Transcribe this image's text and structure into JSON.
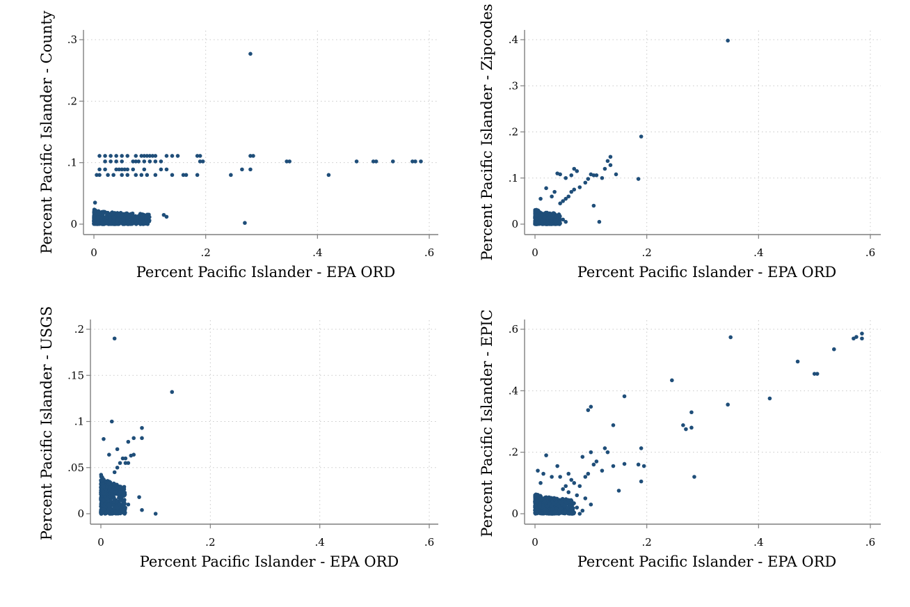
{
  "chart_data": [
    {
      "type": "scatter",
      "xlabel": "Percent Pacific Islander - EPA ORD",
      "ylabel": "Percent Pacific Islander - County",
      "xlim": [
        0,
        0.6
      ],
      "ylim": [
        0,
        0.3
      ],
      "x_ticks": [
        {
          "v": 0,
          "t": "0"
        },
        {
          "v": 0.2,
          "t": ".2"
        },
        {
          "v": 0.4,
          "t": ".4"
        },
        {
          "v": 0.6,
          "t": ".6"
        }
      ],
      "y_ticks": [
        {
          "v": 0,
          "t": "0"
        },
        {
          "v": 0.1,
          "t": ".1"
        },
        {
          "v": 0.2,
          "t": ".2"
        },
        {
          "v": 0.3,
          "t": ".3"
        }
      ],
      "grid": true,
      "color": "#1f4e79",
      "points": [
        [
          0.28,
          0.277
        ],
        [
          0.28,
          0.111
        ],
        [
          0.285,
          0.111
        ],
        [
          0.35,
          0.102
        ],
        [
          0.345,
          0.102
        ],
        [
          0.47,
          0.102
        ],
        [
          0.5,
          0.102
        ],
        [
          0.505,
          0.102
        ],
        [
          0.535,
          0.102
        ],
        [
          0.57,
          0.102
        ],
        [
          0.575,
          0.102
        ],
        [
          0.585,
          0.102
        ],
        [
          0.42,
          0.08
        ],
        [
          0.245,
          0.08
        ],
        [
          0.265,
          0.089
        ],
        [
          0.28,
          0.089
        ],
        [
          0.27,
          0.002
        ],
        [
          0.19,
          0.102
        ],
        [
          0.195,
          0.102
        ],
        [
          0.185,
          0.111
        ],
        [
          0.19,
          0.111
        ],
        [
          0.185,
          0.08
        ],
        [
          0.01,
          0.111
        ],
        [
          0.02,
          0.111
        ],
        [
          0.03,
          0.111
        ],
        [
          0.04,
          0.111
        ],
        [
          0.05,
          0.111
        ],
        [
          0.06,
          0.111
        ],
        [
          0.075,
          0.111
        ],
        [
          0.085,
          0.111
        ],
        [
          0.09,
          0.111
        ],
        [
          0.1,
          0.111
        ],
        [
          0.11,
          0.111
        ],
        [
          0.13,
          0.111
        ],
        [
          0.15,
          0.111
        ],
        [
          0.095,
          0.111
        ],
        [
          0.105,
          0.111
        ],
        [
          0.14,
          0.111
        ],
        [
          0.02,
          0.102
        ],
        [
          0.03,
          0.102
        ],
        [
          0.04,
          0.102
        ],
        [
          0.05,
          0.102
        ],
        [
          0.07,
          0.102
        ],
        [
          0.08,
          0.102
        ],
        [
          0.09,
          0.102
        ],
        [
          0.1,
          0.102
        ],
        [
          0.11,
          0.102
        ],
        [
          0.12,
          0.102
        ],
        [
          0.075,
          0.102
        ],
        [
          0.01,
          0.089
        ],
        [
          0.02,
          0.089
        ],
        [
          0.04,
          0.089
        ],
        [
          0.05,
          0.089
        ],
        [
          0.06,
          0.089
        ],
        [
          0.07,
          0.089
        ],
        [
          0.09,
          0.089
        ],
        [
          0.12,
          0.089
        ],
        [
          0.13,
          0.089
        ],
        [
          0.045,
          0.089
        ],
        [
          0.055,
          0.089
        ],
        [
          0.005,
          0.08
        ],
        [
          0.01,
          0.08
        ],
        [
          0.025,
          0.08
        ],
        [
          0.035,
          0.08
        ],
        [
          0.05,
          0.08
        ],
        [
          0.06,
          0.08
        ],
        [
          0.075,
          0.08
        ],
        [
          0.085,
          0.08
        ],
        [
          0.095,
          0.08
        ],
        [
          0.11,
          0.08
        ],
        [
          0.14,
          0.08
        ],
        [
          0.16,
          0.08
        ],
        [
          0.165,
          0.08
        ],
        [
          0.13,
          0.012
        ],
        [
          0.125,
          0.015
        ],
        [
          0.002,
          0.035
        ]
      ],
      "cluster": {
        "xmin": 0,
        "xmax": 0.1,
        "ymin": 0,
        "ymax": 0.025,
        "n": 500
      }
    },
    {
      "type": "scatter",
      "xlabel": "Percent Pacific Islander - EPA ORD",
      "ylabel": "Percent Pacific Islander - Zipcodes",
      "xlim": [
        0,
        0.6
      ],
      "ylim": [
        0,
        0.4
      ],
      "x_ticks": [
        {
          "v": 0,
          "t": "0"
        },
        {
          "v": 0.2,
          "t": ".2"
        },
        {
          "v": 0.4,
          "t": ".4"
        },
        {
          "v": 0.6,
          "t": ".6"
        }
      ],
      "y_ticks": [
        {
          "v": 0,
          "t": "0"
        },
        {
          "v": 0.1,
          "t": ".1"
        },
        {
          "v": 0.2,
          "t": ".2"
        },
        {
          "v": 0.3,
          "t": ".3"
        },
        {
          "v": 0.4,
          "t": ".4"
        }
      ],
      "grid": true,
      "color": "#1f4e79",
      "points": [
        [
          0.345,
          0.398
        ],
        [
          0.19,
          0.19
        ],
        [
          0.185,
          0.098
        ],
        [
          0.135,
          0.146
        ],
        [
          0.13,
          0.137
        ],
        [
          0.135,
          0.128
        ],
        [
          0.125,
          0.12
        ],
        [
          0.145,
          0.108
        ],
        [
          0.12,
          0.1
        ],
        [
          0.1,
          0.108
        ],
        [
          0.105,
          0.106
        ],
        [
          0.11,
          0.106
        ],
        [
          0.095,
          0.098
        ],
        [
          0.09,
          0.09
        ],
        [
          0.08,
          0.08
        ],
        [
          0.07,
          0.12
        ],
        [
          0.075,
          0.115
        ],
        [
          0.065,
          0.106
        ],
        [
          0.055,
          0.1
        ],
        [
          0.045,
          0.108
        ],
        [
          0.04,
          0.11
        ],
        [
          0.07,
          0.075
        ],
        [
          0.065,
          0.07
        ],
        [
          0.06,
          0.06
        ],
        [
          0.055,
          0.055
        ],
        [
          0.05,
          0.05
        ],
        [
          0.045,
          0.045
        ],
        [
          0.105,
          0.04
        ],
        [
          0.115,
          0.005
        ],
        [
          0.02,
          0.078
        ],
        [
          0.035,
          0.07
        ],
        [
          0.03,
          0.06
        ],
        [
          0.01,
          0.055
        ],
        [
          0.055,
          0.005
        ],
        [
          0.05,
          0.01
        ]
      ],
      "cluster": {
        "xmin": 0,
        "xmax": 0.045,
        "ymin": 0,
        "ymax": 0.035,
        "n": 300
      }
    },
    {
      "type": "scatter",
      "xlabel": "Percent Pacific Islander - EPA ORD",
      "ylabel": "Percent Pacific Islander - USGS",
      "xlim": [
        0,
        0.6
      ],
      "ylim": [
        0,
        0.2
      ],
      "x_ticks": [
        {
          "v": 0,
          "t": "0"
        },
        {
          "v": 0.2,
          "t": ".2"
        },
        {
          "v": 0.4,
          "t": ".4"
        },
        {
          "v": 0.6,
          "t": ".6"
        }
      ],
      "y_ticks": [
        {
          "v": 0,
          "t": "0"
        },
        {
          "v": 0.05,
          "t": ".05"
        },
        {
          "v": 0.1,
          "t": ".1"
        },
        {
          "v": 0.15,
          "t": ".15"
        },
        {
          "v": 0.2,
          "t": ".2"
        }
      ],
      "grid": true,
      "color": "#1f4e79",
      "points": [
        [
          0.025,
          0.19
        ],
        [
          0.13,
          0.132
        ],
        [
          0.02,
          0.1
        ],
        [
          0.075,
          0.093
        ],
        [
          0.06,
          0.082
        ],
        [
          0.075,
          0.082
        ],
        [
          0.05,
          0.078
        ],
        [
          0.005,
          0.081
        ],
        [
          0.03,
          0.07
        ],
        [
          0.055,
          0.063
        ],
        [
          0.06,
          0.064
        ],
        [
          0.04,
          0.06
        ],
        [
          0.045,
          0.06
        ],
        [
          0.035,
          0.055
        ],
        [
          0.045,
          0.055
        ],
        [
          0.05,
          0.055
        ],
        [
          0.015,
          0.064
        ],
        [
          0.1,
          0.0
        ],
        [
          0.07,
          0.018
        ],
        [
          0.075,
          0.004
        ],
        [
          0.05,
          0.01
        ],
        [
          0.04,
          0.005
        ],
        [
          0.025,
          0.045
        ],
        [
          0.03,
          0.05
        ]
      ],
      "cluster": {
        "xmin": 0,
        "xmax": 0.045,
        "ymin": 0,
        "ymax": 0.045,
        "n": 420
      }
    },
    {
      "type": "scatter",
      "xlabel": "Percent Pacific Islander - EPA ORD",
      "ylabel": "Percent Pacific Islander - EPIC",
      "xlim": [
        0,
        0.6
      ],
      "ylim": [
        0,
        0.6
      ],
      "x_ticks": [
        {
          "v": 0,
          "t": "0"
        },
        {
          "v": 0.2,
          "t": ".2"
        },
        {
          "v": 0.4,
          "t": ".4"
        },
        {
          "v": 0.6,
          "t": ".6"
        }
      ],
      "y_ticks": [
        {
          "v": 0,
          "t": "0"
        },
        {
          "v": 0.2,
          "t": ".2"
        },
        {
          "v": 0.4,
          "t": ".4"
        },
        {
          "v": 0.6,
          "t": ".6"
        }
      ],
      "grid": true,
      "color": "#1f4e79",
      "points": [
        [
          0.585,
          0.586
        ],
        [
          0.575,
          0.575
        ],
        [
          0.585,
          0.57
        ],
        [
          0.57,
          0.57
        ],
        [
          0.535,
          0.535
        ],
        [
          0.47,
          0.495
        ],
        [
          0.5,
          0.455
        ],
        [
          0.505,
          0.455
        ],
        [
          0.42,
          0.375
        ],
        [
          0.35,
          0.574
        ],
        [
          0.345,
          0.355
        ],
        [
          0.245,
          0.434
        ],
        [
          0.28,
          0.33
        ],
        [
          0.265,
          0.288
        ],
        [
          0.27,
          0.275
        ],
        [
          0.28,
          0.28
        ],
        [
          0.285,
          0.12
        ],
        [
          0.16,
          0.382
        ],
        [
          0.1,
          0.348
        ],
        [
          0.095,
          0.337
        ],
        [
          0.14,
          0.288
        ],
        [
          0.19,
          0.213
        ],
        [
          0.19,
          0.105
        ],
        [
          0.195,
          0.155
        ],
        [
          0.185,
          0.16
        ],
        [
          0.16,
          0.162
        ],
        [
          0.15,
          0.075
        ],
        [
          0.14,
          0.155
        ],
        [
          0.125,
          0.213
        ],
        [
          0.13,
          0.2
        ],
        [
          0.12,
          0.14
        ],
        [
          0.11,
          0.17
        ],
        [
          0.105,
          0.16
        ],
        [
          0.1,
          0.2
        ],
        [
          0.095,
          0.13
        ],
        [
          0.09,
          0.12
        ],
        [
          0.085,
          0.185
        ],
        [
          0.08,
          0.09
        ],
        [
          0.07,
          0.1
        ],
        [
          0.065,
          0.11
        ],
        [
          0.06,
          0.13
        ],
        [
          0.055,
          0.09
        ],
        [
          0.05,
          0.08
        ],
        [
          0.045,
          0.12
        ],
        [
          0.04,
          0.155
        ],
        [
          0.03,
          0.12
        ],
        [
          0.02,
          0.19
        ],
        [
          0.015,
          0.13
        ],
        [
          0.005,
          0.14
        ],
        [
          0.01,
          0.1
        ],
        [
          0.085,
          0.01
        ],
        [
          0.08,
          0.0
        ],
        [
          0.075,
          0.02
        ],
        [
          0.1,
          0.03
        ],
        [
          0.09,
          0.05
        ],
        [
          0.075,
          0.06
        ],
        [
          0.06,
          0.07
        ]
      ],
      "cluster": {
        "xmin": 0,
        "xmax": 0.07,
        "ymin": 0,
        "ymax": 0.07,
        "n": 500
      }
    }
  ]
}
